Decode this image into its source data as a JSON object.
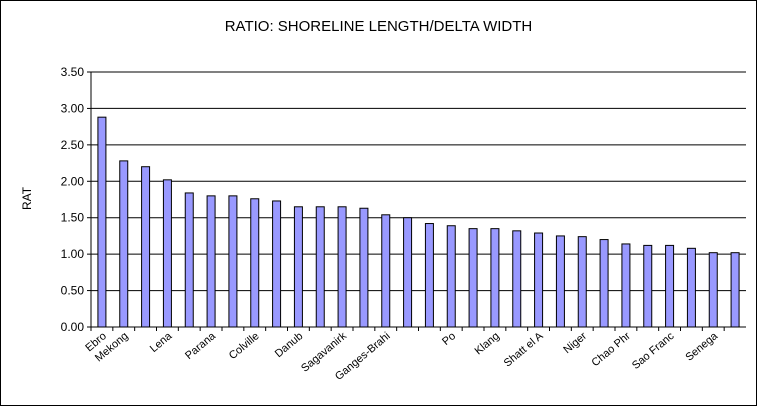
{
  "chart_data": {
    "type": "bar",
    "title": "RATIO: SHORELINE LENGTH/DELTA WIDTH",
    "xlabel": "",
    "ylabel": "RAT",
    "ylim": [
      0,
      3.5
    ],
    "yticks": [
      "0.00",
      "0.50",
      "1.00",
      "1.50",
      "2.00",
      "2.50",
      "3.00",
      "3.50"
    ],
    "grid": true,
    "bar_color": "#9999ff",
    "categories": [
      "Ebro",
      "Mekong",
      "",
      "Lena",
      "",
      "Parana",
      "",
      "Colville",
      "",
      "Danube",
      "",
      "Sagavanirktok",
      "",
      "Ganges-Brahmaputra",
      "",
      "",
      "Po",
      "",
      "Klang",
      "",
      "Shatt el Arab",
      "",
      "Niger",
      "",
      "Chao Phraya",
      "",
      "Sao Francisco",
      "",
      "Senegal",
      ""
    ],
    "visible_labels": [
      "Ebro",
      "Mekong",
      "",
      "Lena",
      "",
      "Parana",
      "",
      "Colville",
      "",
      "Danub",
      "",
      "Sagavanirk",
      "",
      "Ganges-Brahi",
      "",
      "",
      "Po",
      "",
      "Klang",
      "",
      "Shatt el A",
      "",
      "Niger",
      "",
      "Chao Phr",
      "",
      "Sao Franc",
      "",
      "Senega",
      ""
    ],
    "values": [
      2.88,
      2.28,
      2.2,
      2.02,
      1.84,
      1.8,
      1.8,
      1.76,
      1.73,
      1.65,
      1.65,
      1.65,
      1.63,
      1.54,
      1.5,
      1.42,
      1.39,
      1.35,
      1.35,
      1.32,
      1.29,
      1.25,
      1.24,
      1.2,
      1.14,
      1.12,
      1.12,
      1.08,
      1.02,
      1.02
    ]
  }
}
